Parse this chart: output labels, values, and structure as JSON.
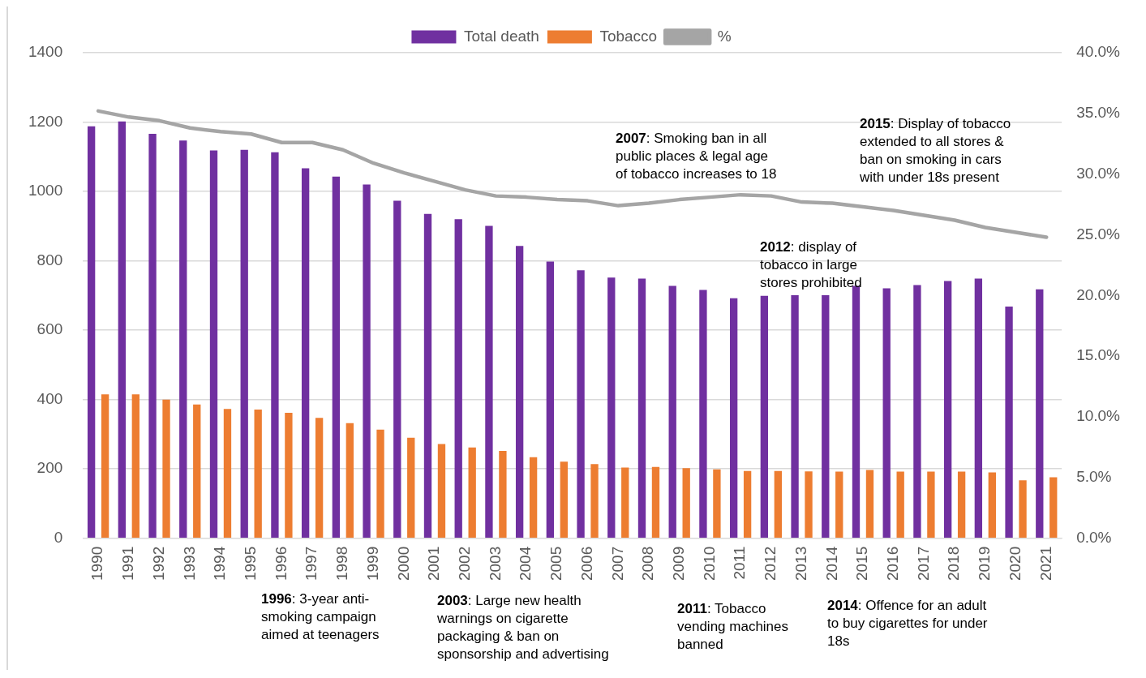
{
  "chart_data": {
    "type": "bar",
    "categories": [
      "1990",
      "1991",
      "1992",
      "1993",
      "1994",
      "1995",
      "1996",
      "1997",
      "1998",
      "1999",
      "2000",
      "2001",
      "2002",
      "2003",
      "2004",
      "2005",
      "2006",
      "2007",
      "2008",
      "2009",
      "2010",
      "2011",
      "2012",
      "2013",
      "2014",
      "2015",
      "2016",
      "2017",
      "2018",
      "2019",
      "2020",
      "2021"
    ],
    "series": [
      {
        "name": "Total death",
        "color": "#7030a0",
        "values": [
          1188,
          1202,
          1166,
          1147,
          1118,
          1120,
          1113,
          1067,
          1043,
          1020,
          973,
          935,
          920,
          901,
          843,
          798,
          773,
          752,
          749,
          728,
          716,
          692,
          699,
          701,
          701,
          728,
          721,
          730,
          742,
          749,
          668,
          718
        ]
      },
      {
        "name": "Tobacco",
        "color": "#ed7d31",
        "values": [
          415,
          415,
          400,
          386,
          373,
          371,
          362,
          347,
          332,
          313,
          290,
          272,
          262,
          252,
          234,
          221,
          214,
          204,
          206,
          202,
          199,
          194,
          194,
          193,
          192,
          197,
          192,
          192,
          192,
          190,
          167,
          176
        ]
      },
      {
        "name": "%",
        "type": "line",
        "axis": "y2",
        "color": "#a5a5a5",
        "values": [
          35.2,
          34.7,
          34.4,
          33.8,
          33.5,
          33.3,
          32.6,
          32.6,
          32.0,
          30.9,
          30.1,
          29.4,
          28.7,
          28.2,
          28.1,
          27.9,
          27.8,
          27.4,
          27.6,
          27.9,
          28.1,
          28.3,
          28.2,
          27.7,
          27.6,
          27.3,
          27.0,
          26.6,
          26.2,
          25.6,
          25.2,
          24.8
        ]
      }
    ],
    "ylim": [
      0,
      1400
    ],
    "yticks": [
      0,
      200,
      400,
      600,
      800,
      1000,
      1200,
      1400
    ],
    "y2lim": [
      0,
      40
    ],
    "y2ticks": [
      {
        "value": 0,
        "label": "0.0%"
      },
      {
        "value": 5,
        "label": "5.0%"
      },
      {
        "value": 10,
        "label": "10.0%"
      },
      {
        "value": 15,
        "label": "15.0%"
      },
      {
        "value": 20,
        "label": "20.0%"
      },
      {
        "value": 25,
        "label": "25.0%"
      },
      {
        "value": 30,
        "label": "30.0%"
      },
      {
        "value": 35,
        "label": "35.0%"
      },
      {
        "value": 40,
        "label": "40.0%"
      }
    ],
    "grid": "y",
    "legend": "top",
    "marker": "none",
    "line_style": "solid",
    "annotations": [
      "2007: Smoking ban in all public places & legal age of tobacco increases to 18",
      "2015: Display of tobacco extended to all stores & ban on smoking in cars with under 18s present",
      "2012: display of tobacco in large stores prohibited",
      "1996: 3-year anti-smoking campaign aimed at teenagers",
      "2003: Large new health warnings on cigarette packaging & ban on sponsorship and advertising",
      "2011: Tobacco vending machines banned",
      "2014: Offence for an adult to buy cigarettes for under 18s"
    ]
  }
}
